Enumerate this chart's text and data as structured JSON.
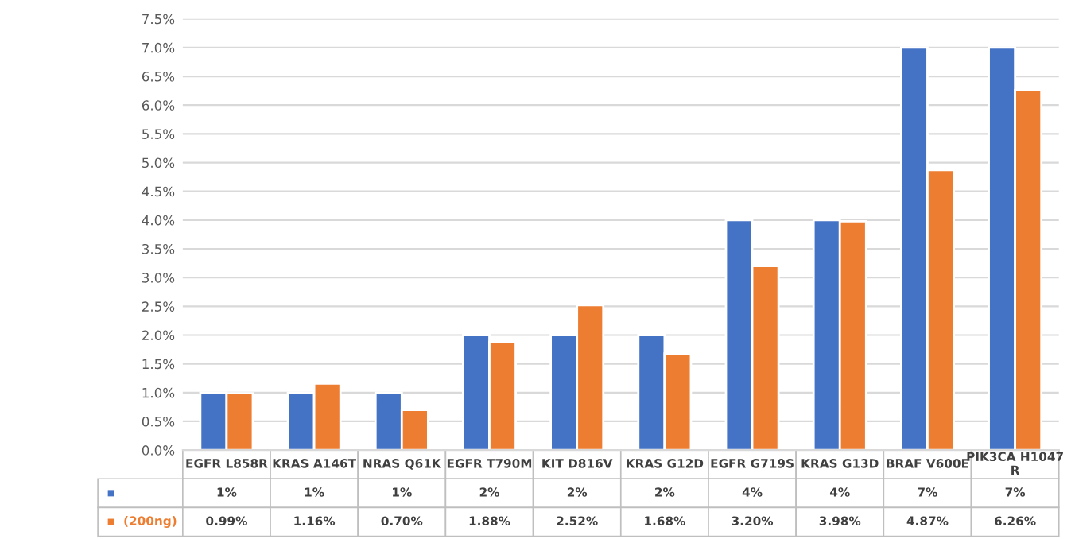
{
  "chart_data": {
    "type": "bar",
    "categories": [
      "EGFR L858R",
      "KRAS A146T",
      "NRAS Q61K",
      "EGFR T790M",
      "KIT D816V",
      "KRAS G12D",
      "EGFR G719S",
      "KRAS G13D",
      "BRAF V600E",
      "PIK3CA H1047\nR"
    ],
    "series": [
      {
        "color": "#4472c4",
        "values": [
          1,
          1,
          1,
          2,
          2,
          2,
          4,
          4,
          7,
          7
        ],
        "value_labels": [
          "1%",
          "1%",
          "1%",
          "2%",
          "2%",
          "2%",
          "4%",
          "4%",
          "7%",
          "7%"
        ]
      },
      {
        "name": "(200ng)",
        "color": "#ed7d31",
        "values": [
          0.99,
          1.16,
          0.7,
          1.88,
          2.52,
          1.68,
          3.2,
          3.98,
          4.87,
          6.26
        ],
        "value_labels": [
          "0.99%",
          "1.16%",
          "0.70%",
          "1.88%",
          "2.52%",
          "1.68%",
          "3.20%",
          "3.98%",
          "4.87%",
          "6.26%"
        ]
      }
    ],
    "ylim": [
      0,
      7.5
    ],
    "yticks": [
      {
        "value": 0,
        "label": "0.0%"
      },
      {
        "value": 0.5,
        "label": "0.5%"
      },
      {
        "value": 1,
        "label": "1.0%"
      },
      {
        "value": 1.5,
        "label": "1.5%"
      },
      {
        "value": 2,
        "label": "2.0%"
      },
      {
        "value": 2.5,
        "label": "2.5%"
      },
      {
        "value": 3,
        "label": "3.0%"
      },
      {
        "value": 3.5,
        "label": "3.5%"
      },
      {
        "value": 4,
        "label": "4.0%"
      },
      {
        "value": 4.5,
        "label": "4.5%"
      },
      {
        "value": 5,
        "label": "5.0%"
      },
      {
        "value": 5.5,
        "label": "5.5%"
      },
      {
        "value": 6,
        "label": "6.0%"
      },
      {
        "value": 6.5,
        "label": "6.5%"
      },
      {
        "value": 7,
        "label": "7.0%"
      },
      {
        "value": 7.5,
        "label": "7.5%"
      }
    ],
    "grid": "y"
  }
}
